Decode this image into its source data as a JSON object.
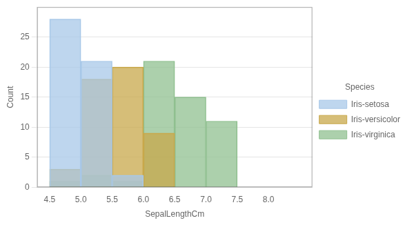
{
  "chart_data": {
    "type": "histogram",
    "xlabel": "SepalLengthCm",
    "ylabel": "Count",
    "bins": [
      4.5,
      5.0,
      5.5,
      6.0,
      6.5,
      7.0,
      7.5,
      8.0
    ],
    "series": [
      {
        "name": "Iris-setosa",
        "color": "#a8c8e8",
        "values": [
          28,
          21,
          2,
          0,
          0,
          0,
          0
        ]
      },
      {
        "name": "Iris-versicolor",
        "color": "#c8a84b",
        "values": [
          3,
          18,
          20,
          9,
          0,
          0,
          0
        ]
      },
      {
        "name": "Iris-virginica",
        "color": "#90c090",
        "values": [
          1,
          2,
          1,
          21,
          15,
          11,
          0
        ]
      }
    ],
    "xlim": [
      4.3,
      8.7
    ],
    "ylim": [
      0,
      30
    ],
    "xticks": [
      4.5,
      {
        "value": 5,
        "label": "5.0"
      },
      5.5,
      {
        "value": 6,
        "label": "6.0"
      },
      6.5,
      {
        "value": 7,
        "label": "7.0"
      },
      7.5,
      {
        "value": 8,
        "label": "8.0"
      }
    ],
    "yticks": [
      0,
      5,
      10,
      15,
      20,
      25
    ],
    "grid": true,
    "legend": "right",
    "legend_title": "Species"
  }
}
